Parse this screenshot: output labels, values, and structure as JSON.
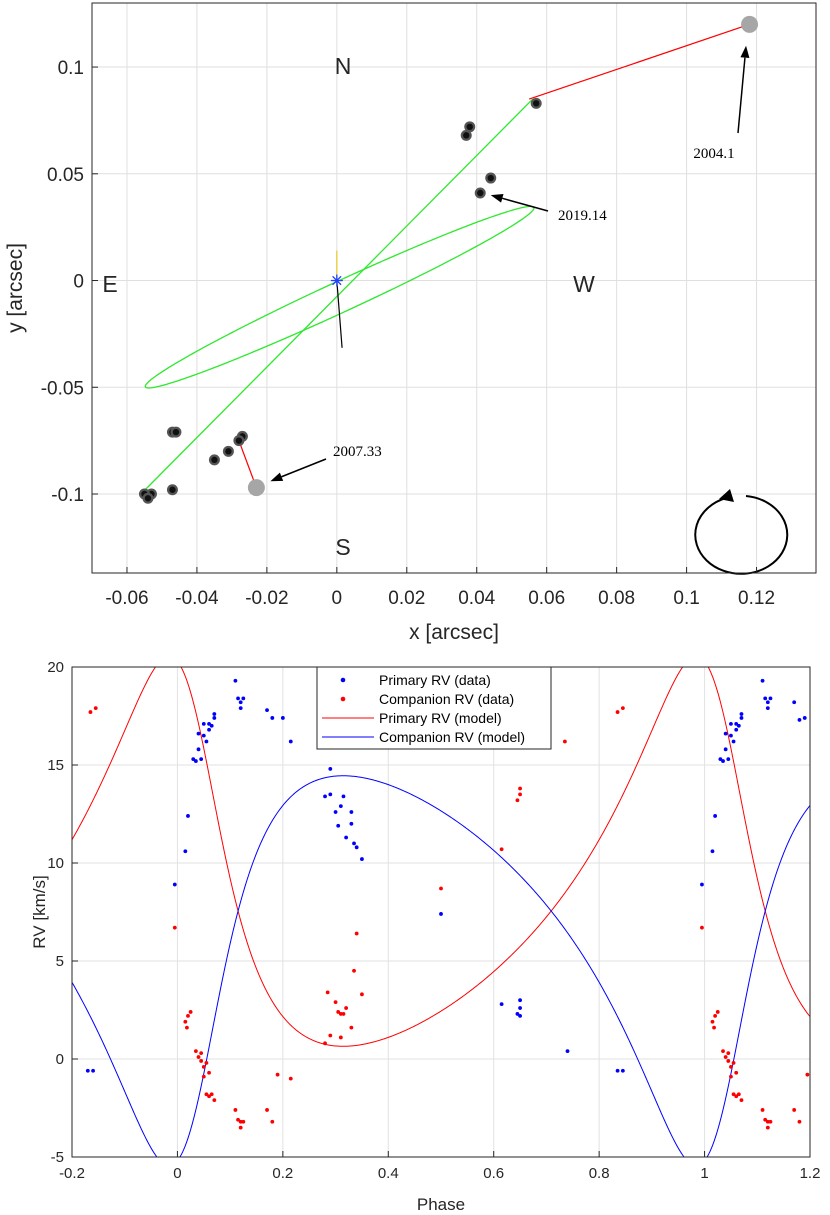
{
  "chart_data": [
    {
      "type": "scatter",
      "panel": "astrometric-orbit",
      "xlabel": "x [arcsec]",
      "ylabel": "y [arcsec]",
      "xlim": [
        -0.07,
        0.137
      ],
      "ylim": [
        -0.137,
        0.13
      ],
      "xticks": [
        -0.06,
        -0.04,
        -0.02,
        0,
        0.02,
        0.04,
        0.06,
        0.08,
        0.1,
        0.12
      ],
      "xtick_labels": [
        "-0.06",
        "-0.04",
        "-0.02",
        "0",
        "0.02",
        "0.04",
        "0.06",
        "0.08",
        "0.1",
        "0.12"
      ],
      "yticks": [
        0.1,
        0.05,
        0,
        -0.05,
        -0.1
      ],
      "ytick_labels": [
        "0.1",
        "0.05",
        "0",
        "-0.05",
        "-0.1"
      ],
      "grid": true,
      "compass": {
        "north": "N",
        "south": "S",
        "east": "E",
        "west": "W"
      },
      "orbit": {
        "center": [
          0.0008,
          -0.0078
        ],
        "semi_major_axis": 0.0697,
        "semi_minor_axis": 0.0063,
        "angle_deg": 37.3,
        "line_of_nodes": [
          [
            -0.056,
            -0.1
          ],
          [
            0.056,
            0.085
          ]
        ],
        "color": "#2ee82e"
      },
      "primary": [
        0,
        0
      ],
      "periastron_segment": [
        [
          0,
          0
        ],
        [
          0.0015,
          -0.0315
        ]
      ],
      "observations": [
        [
          0.057,
          0.083
        ],
        [
          0.038,
          0.072
        ],
        [
          0.037,
          0.068
        ],
        [
          0.044,
          0.048
        ],
        [
          0.041,
          0.041
        ],
        [
          -0.047,
          -0.071
        ],
        [
          -0.046,
          -0.071
        ],
        [
          -0.027,
          -0.073
        ],
        [
          -0.028,
          -0.075
        ],
        [
          -0.031,
          -0.08
        ],
        [
          -0.035,
          -0.084
        ],
        [
          -0.047,
          -0.098
        ],
        [
          -0.053,
          -0.1
        ],
        [
          -0.055,
          -0.1
        ],
        [
          -0.054,
          -0.102
        ]
      ],
      "outliers": [
        {
          "epoch": "2004.1",
          "pos": [
            0.118,
            0.12
          ],
          "model": [
            0.055,
            0.085
          ]
        },
        {
          "epoch": "2007.33",
          "pos": [
            -0.023,
            -0.097
          ],
          "model": [
            -0.028,
            -0.075
          ]
        }
      ],
      "annotations": [
        {
          "text": "2004.1",
          "target": [
            0.117,
            0.11
          ]
        },
        {
          "text": "2019.14",
          "target": [
            0.044,
            0.04
          ]
        },
        {
          "text": "2007.33",
          "target": [
            -0.019,
            -0.094
          ]
        }
      ],
      "motion": "counter-clockwise"
    },
    {
      "type": "line",
      "panel": "radial-velocity",
      "xlabel": "Phase",
      "ylabel": "RV [km/s]",
      "xlim": [
        -0.2,
        1.2
      ],
      "ylim": [
        -5,
        20
      ],
      "xticks": [
        -0.2,
        0,
        0.2,
        0.4,
        0.6,
        0.8,
        1,
        1.2
      ],
      "xtick_labels": [
        "-0.2",
        "0",
        "0.2",
        "0.4",
        "0.6",
        "0.8",
        "1",
        "1.2"
      ],
      "yticks": [
        -5,
        0,
        5,
        10,
        15,
        20
      ],
      "ytick_labels": [
        "-5",
        "0",
        "5",
        "10",
        "15",
        "20"
      ],
      "grid": true,
      "legend_position": "top-center",
      "model": {
        "gamma": 7.55,
        "K": 9.95,
        "eccentricity": 0.4,
        "omega_deg": 40,
        "periastron_phase": 0.03
      },
      "series": [
        {
          "name": "Primary RV (data)",
          "color": "#0000ff",
          "style": "dots",
          "points": [
            [
              -0.17,
              -0.6
            ],
            [
              -0.16,
              -0.6
            ],
            [
              -0.005,
              8.9
            ],
            [
              0.015,
              10.6
            ],
            [
              0.02,
              12.4
            ],
            [
              0.03,
              15.3
            ],
            [
              0.035,
              15.2
            ],
            [
              0.04,
              15.8
            ],
            [
              0.04,
              16.6
            ],
            [
              0.045,
              15.3
            ],
            [
              0.05,
              16.5
            ],
            [
              0.05,
              17.1
            ],
            [
              0.055,
              16.2
            ],
            [
              0.06,
              16.8
            ],
            [
              0.06,
              17.1
            ],
            [
              0.065,
              17.0
            ],
            [
              0.07,
              17.6
            ],
            [
              0.07,
              17.4
            ],
            [
              0.11,
              19.3
            ],
            [
              0.115,
              18.4
            ],
            [
              0.12,
              18.2
            ],
            [
              0.12,
              17.9
            ],
            [
              0.125,
              18.4
            ],
            [
              0.17,
              17.8
            ],
            [
              0.18,
              17.4
            ],
            [
              0.2,
              17.4
            ],
            [
              0.215,
              16.2
            ],
            [
              0.28,
              13.4
            ],
            [
              0.29,
              13.5
            ],
            [
              0.29,
              14.8
            ],
            [
              0.3,
              12.6
            ],
            [
              0.305,
              11.9
            ],
            [
              0.31,
              12.9
            ],
            [
              0.315,
              13.4
            ],
            [
              0.32,
              11.3
            ],
            [
              0.33,
              12.0
            ],
            [
              0.33,
              12.6
            ],
            [
              0.335,
              11.0
            ],
            [
              0.34,
              10.8
            ],
            [
              0.35,
              10.2
            ],
            [
              0.5,
              7.4
            ],
            [
              0.615,
              2.8
            ],
            [
              0.645,
              2.3
            ],
            [
              0.65,
              2.2
            ],
            [
              0.65,
              2.6
            ],
            [
              0.65,
              3.0
            ],
            [
              0.74,
              0.4
            ],
            [
              0.835,
              -0.6
            ],
            [
              0.845,
              -0.6
            ],
            [
              0.995,
              8.9
            ],
            [
              1.015,
              10.6
            ],
            [
              1.02,
              12.4
            ],
            [
              1.03,
              15.3
            ],
            [
              1.035,
              15.2
            ],
            [
              1.04,
              15.8
            ],
            [
              1.04,
              16.6
            ],
            [
              1.045,
              15.3
            ],
            [
              1.05,
              16.5
            ],
            [
              1.05,
              17.1
            ],
            [
              1.055,
              16.2
            ],
            [
              1.06,
              16.8
            ],
            [
              1.06,
              17.1
            ],
            [
              1.065,
              17.0
            ],
            [
              1.07,
              17.6
            ],
            [
              1.07,
              17.4
            ],
            [
              1.11,
              19.3
            ],
            [
              1.115,
              18.4
            ],
            [
              1.12,
              18.2
            ],
            [
              1.12,
              17.9
            ],
            [
              1.125,
              18.4
            ],
            [
              1.17,
              18.2
            ],
            [
              1.18,
              17.3
            ],
            [
              1.19,
              17.4
            ]
          ]
        },
        {
          "name": "Companion RV (data)",
          "color": "#ff0000",
          "style": "dots",
          "points": [
            [
              -0.165,
              17.7
            ],
            [
              -0.155,
              17.9
            ],
            [
              -0.005,
              6.7
            ],
            [
              0.015,
              1.9
            ],
            [
              0.018,
              1.6
            ],
            [
              0.02,
              2.2
            ],
            [
              0.025,
              2.4
            ],
            [
              0.035,
              0.4
            ],
            [
              0.04,
              0.1
            ],
            [
              0.045,
              -0.1
            ],
            [
              0.045,
              0.3
            ],
            [
              0.05,
              -0.4
            ],
            [
              0.05,
              -0.9
            ],
            [
              0.055,
              -0.2
            ],
            [
              0.055,
              -1.8
            ],
            [
              0.06,
              -0.7
            ],
            [
              0.06,
              -1.9
            ],
            [
              0.065,
              -1.8
            ],
            [
              0.07,
              -2.1
            ],
            [
              0.11,
              -2.6
            ],
            [
              0.115,
              -3.1
            ],
            [
              0.12,
              -3.5
            ],
            [
              0.12,
              -3.2
            ],
            [
              0.125,
              -3.2
            ],
            [
              0.17,
              -2.6
            ],
            [
              0.18,
              -3.2
            ],
            [
              0.19,
              -0.8
            ],
            [
              0.215,
              -1.0
            ],
            [
              0.28,
              0.8
            ],
            [
              0.285,
              3.4
            ],
            [
              0.29,
              1.2
            ],
            [
              0.3,
              2.9
            ],
            [
              0.305,
              2.4
            ],
            [
              0.31,
              2.3
            ],
            [
              0.31,
              1.1
            ],
            [
              0.315,
              2.3
            ],
            [
              0.32,
              2.6
            ],
            [
              0.33,
              1.6
            ],
            [
              0.335,
              4.5
            ],
            [
              0.34,
              6.4
            ],
            [
              0.35,
              3.3
            ],
            [
              0.5,
              8.7
            ],
            [
              0.615,
              10.7
            ],
            [
              0.645,
              13.2
            ],
            [
              0.65,
              13.5
            ],
            [
              0.65,
              13.8
            ],
            [
              0.735,
              16.2
            ],
            [
              0.835,
              17.7
            ],
            [
              0.845,
              17.9
            ],
            [
              0.995,
              6.7
            ],
            [
              1.015,
              1.9
            ],
            [
              1.018,
              1.6
            ],
            [
              1.02,
              2.2
            ],
            [
              1.025,
              2.4
            ],
            [
              1.035,
              0.4
            ],
            [
              1.04,
              0.1
            ],
            [
              1.045,
              -0.1
            ],
            [
              1.045,
              0.3
            ],
            [
              1.05,
              -0.4
            ],
            [
              1.05,
              -0.9
            ],
            [
              1.055,
              -0.2
            ],
            [
              1.055,
              -1.8
            ],
            [
              1.06,
              -0.7
            ],
            [
              1.06,
              -1.9
            ],
            [
              1.065,
              -1.8
            ],
            [
              1.07,
              -2.1
            ],
            [
              1.11,
              -2.6
            ],
            [
              1.115,
              -3.1
            ],
            [
              1.12,
              -3.5
            ],
            [
              1.12,
              -3.2
            ],
            [
              1.125,
              -3.2
            ],
            [
              1.17,
              -2.6
            ],
            [
              1.18,
              -3.2
            ],
            [
              1.195,
              -0.8
            ]
          ]
        },
        {
          "name": "Primary RV (model)",
          "color": "#ff0000",
          "style": "line"
        },
        {
          "name": "Companion RV (model)",
          "color": "#0000ff",
          "style": "line"
        }
      ]
    }
  ]
}
